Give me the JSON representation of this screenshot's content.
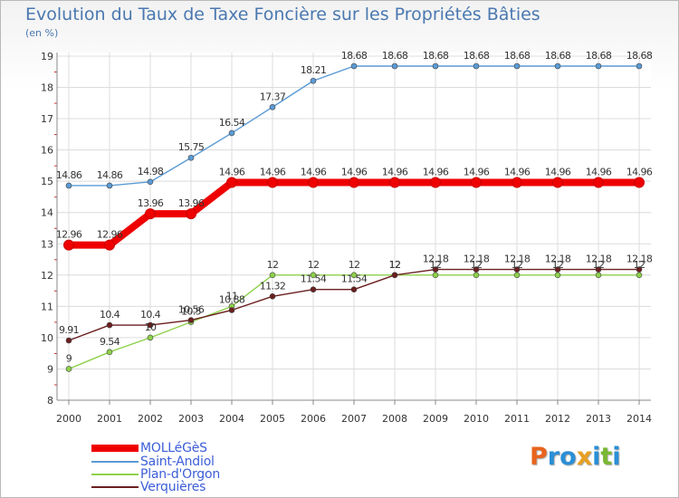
{
  "title": "Evolution du Taux de Taxe Foncière sur les Propriétés Bâties",
  "unit_label": "(en %)",
  "logo": {
    "text": "Proxiti",
    "letters": [
      "P",
      "r",
      "o",
      "x",
      "i",
      "t",
      "i"
    ],
    "colors": [
      "#e8641e",
      "#2a8fd6",
      "#2a8fd6",
      "#e8a020",
      "#2a8fd6",
      "#7ab833",
      "#2a8fd6"
    ]
  },
  "chart_data": {
    "type": "line",
    "title": "Evolution du Taux de Taxe Foncière sur les Propriétés Bâties",
    "ylabel": "(en %)",
    "xlabel": "",
    "x": [
      "2000",
      "2001",
      "2002",
      "2003",
      "2004",
      "2005",
      "2006",
      "2007",
      "2008",
      "2009",
      "2010",
      "2011",
      "2012",
      "2013",
      "2014"
    ],
    "ylim": [
      8,
      19
    ],
    "yticks": [
      "8",
      "9",
      "10",
      "11",
      "12",
      "13",
      "14",
      "15",
      "16",
      "17",
      "18",
      "19"
    ],
    "series": [
      {
        "name": "MOLLéGèS",
        "color": "#ee0000",
        "bold": true,
        "values": [
          12.96,
          12.96,
          13.96,
          13.96,
          14.96,
          14.96,
          14.96,
          14.96,
          14.96,
          14.96,
          14.96,
          14.96,
          14.96,
          14.96,
          14.96
        ],
        "labels": [
          "12.96",
          "12.96",
          "13.96",
          "13.96",
          "14.96",
          "14.96",
          "14.96",
          "14.96",
          "14.96",
          "14.96",
          "14.96",
          "14.96",
          "14.96",
          "14.96",
          "14.96"
        ]
      },
      {
        "name": "Saint-Andiol",
        "color": "#5b9bd5",
        "bold": false,
        "values": [
          14.86,
          14.86,
          14.98,
          15.75,
          16.54,
          17.37,
          18.21,
          18.68,
          18.68,
          18.68,
          18.68,
          18.68,
          18.68,
          18.68,
          18.68
        ],
        "labels": [
          "14.86",
          "14.86",
          "14.98",
          "15.75",
          "16.54",
          "17.37",
          "18.21",
          "18.68",
          "18.68",
          "18.68",
          "18.68",
          "18.68",
          "18.68",
          "18.68",
          "18.68"
        ]
      },
      {
        "name": "Plan-d'Orgon",
        "color": "#8ed14a",
        "bold": false,
        "values": [
          9,
          9.54,
          10,
          10.5,
          11,
          12,
          12,
          12,
          12,
          12,
          12,
          12,
          12,
          12,
          12
        ],
        "labels": [
          "9",
          "9.54",
          "10",
          "10.5",
          "11",
          "12",
          "12",
          "12",
          "12",
          "12",
          "12",
          "12",
          "12",
          "12",
          "12"
        ]
      },
      {
        "name": "Verquières",
        "color": "#6b1f1f",
        "bold": false,
        "values": [
          9.91,
          10.4,
          10.4,
          10.56,
          10.88,
          11.32,
          11.54,
          11.54,
          12,
          12.18,
          12.18,
          12.18,
          12.18,
          12.18,
          12.18
        ],
        "labels": [
          "9.91",
          "10.4",
          "10.4",
          "10.56",
          "10.88",
          "11.32",
          "11.54",
          "11.54",
          "12",
          "12.18",
          "12.18",
          "12.18",
          "12.18",
          "12.18",
          "12.18"
        ]
      }
    ]
  }
}
